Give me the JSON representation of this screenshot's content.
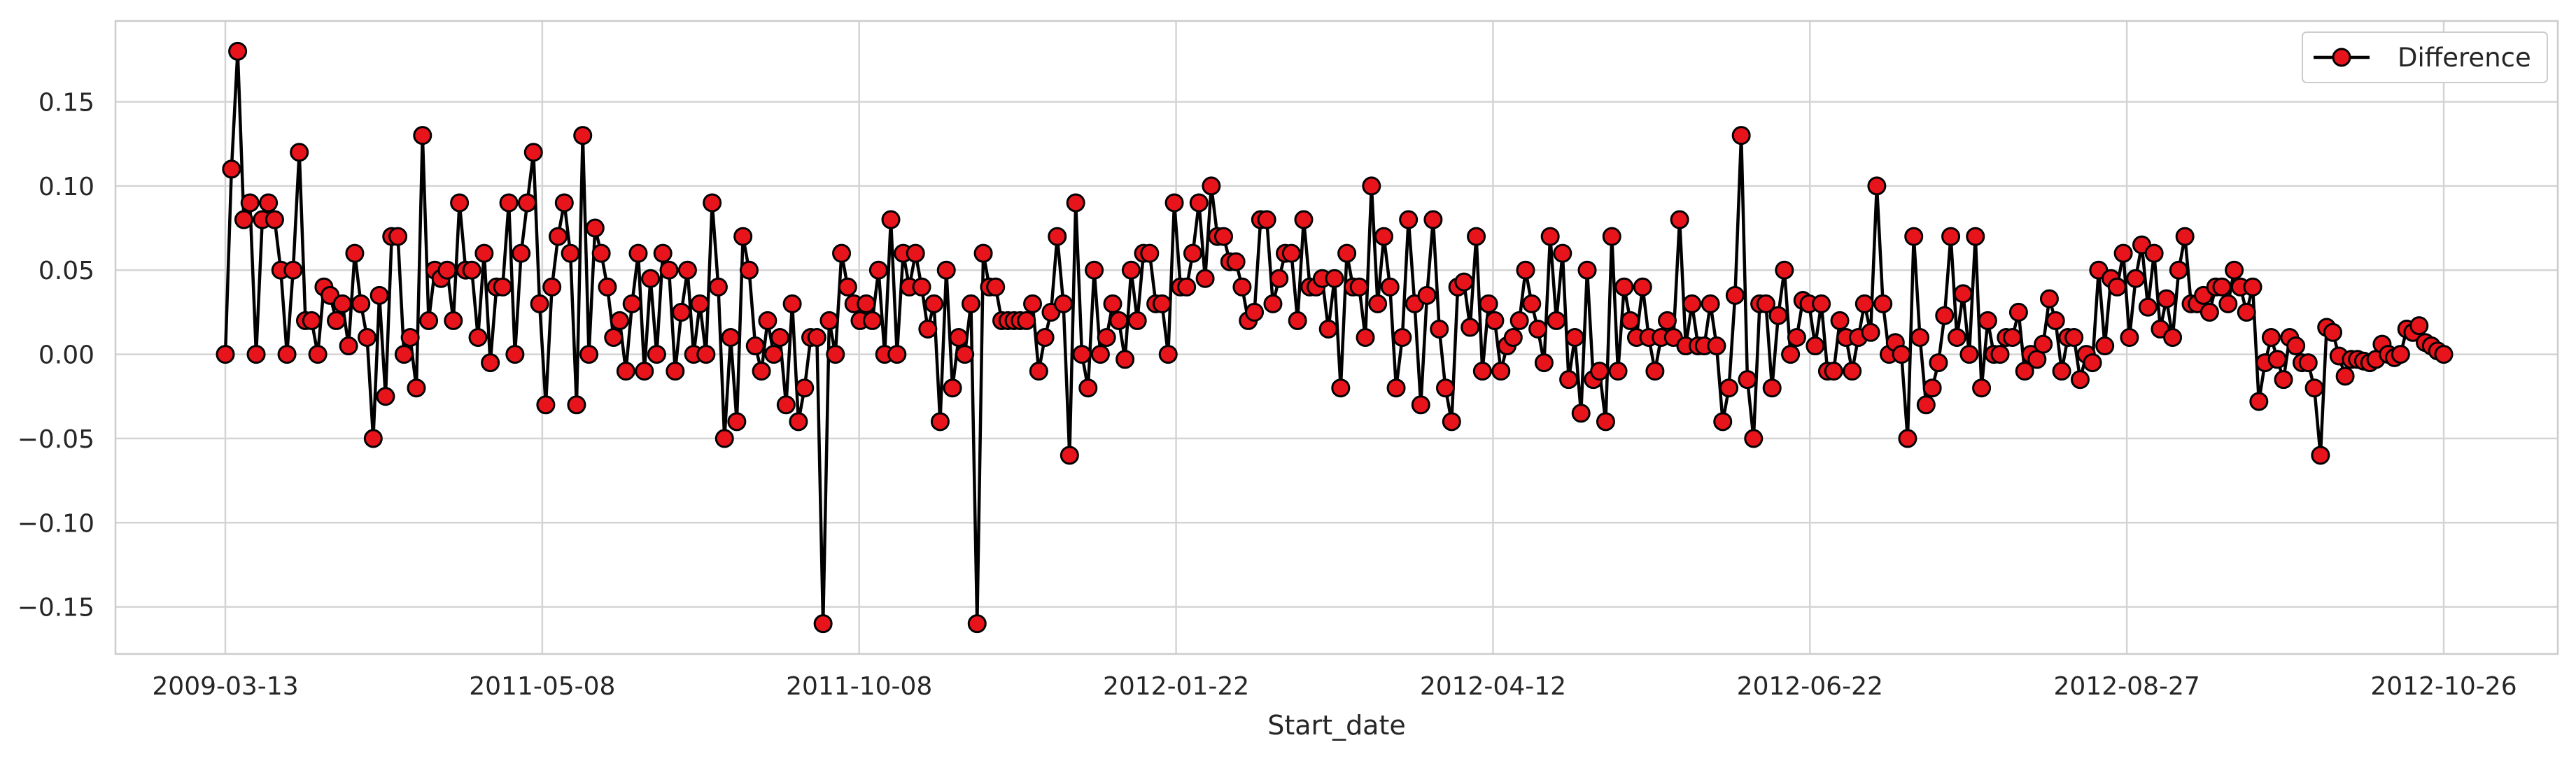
{
  "chart_data": {
    "type": "line",
    "title": "",
    "xlabel": "Start_date",
    "ylabel": "",
    "x_tick_labels": [
      "2009-03-13",
      "2011-05-08",
      "2011-10-08",
      "2012-01-22",
      "2012-04-12",
      "2012-06-22",
      "2012-08-27",
      "2012-10-26"
    ],
    "y_ticks": [
      -0.15,
      -0.1,
      -0.05,
      0.0,
      0.05,
      0.1,
      0.15
    ],
    "y_tick_labels": [
      "−0.15",
      "−0.10",
      "−0.05",
      "0.00",
      "0.05",
      "0.10",
      "0.15"
    ],
    "ylim": [
      -0.178,
      0.198
    ],
    "grid": true,
    "legend_position": "top-right",
    "series": [
      {
        "name": "Difference",
        "line_color": "#000000",
        "marker_face": "#e8141b",
        "marker_edge": "#000000",
        "values": [
          0.0,
          0.11,
          0.18,
          0.08,
          0.09,
          0.0,
          0.08,
          0.09,
          0.08,
          0.05,
          0.0,
          0.05,
          0.12,
          0.02,
          0.02,
          0.0,
          0.04,
          0.035,
          0.02,
          0.03,
          0.005,
          0.06,
          0.03,
          0.01,
          -0.05,
          0.035,
          -0.025,
          0.07,
          0.07,
          0.0,
          0.01,
          -0.02,
          0.13,
          0.02,
          0.05,
          0.045,
          0.05,
          0.02,
          0.09,
          0.05,
          0.05,
          0.01,
          0.06,
          -0.005,
          0.04,
          0.04,
          0.09,
          0.0,
          0.06,
          0.09,
          0.12,
          0.03,
          -0.03,
          0.04,
          0.07,
          0.09,
          0.06,
          -0.03,
          0.13,
          0.0,
          0.075,
          0.06,
          0.04,
          0.01,
          0.02,
          -0.01,
          0.03,
          0.06,
          -0.01,
          0.045,
          0.0,
          0.06,
          0.05,
          -0.01,
          0.025,
          0.05,
          0.0,
          0.03,
          0.0,
          0.09,
          0.04,
          -0.05,
          0.01,
          -0.04,
          0.07,
          0.05,
          0.005,
          -0.01,
          0.02,
          0.0,
          0.01,
          -0.03,
          0.03,
          -0.04,
          -0.02,
          0.01,
          0.01,
          -0.16,
          0.02,
          0.0,
          0.06,
          0.04,
          0.03,
          0.02,
          0.03,
          0.02,
          0.05,
          0.0,
          0.08,
          0.0,
          0.06,
          0.04,
          0.06,
          0.04,
          0.015,
          0.03,
          -0.04,
          0.05,
          -0.02,
          0.01,
          0.0,
          0.03,
          -0.16,
          0.06,
          0.04,
          0.04,
          0.02,
          0.02,
          0.02,
          0.02,
          0.02,
          0.03,
          -0.01,
          0.01,
          0.025,
          0.07,
          0.03,
          -0.06,
          0.09,
          0.0,
          -0.02,
          0.05,
          0.0,
          0.01,
          0.03,
          0.02,
          -0.003,
          0.05,
          0.02,
          0.06,
          0.06,
          0.03,
          0.03,
          0.0,
          0.09,
          0.04,
          0.04,
          0.06,
          0.09,
          0.045,
          0.1,
          0.07,
          0.07,
          0.055,
          0.055,
          0.04,
          0.02,
          0.025,
          0.08,
          0.08,
          0.03,
          0.045,
          0.06,
          0.06,
          0.02,
          0.08,
          0.04,
          0.04,
          0.045,
          0.015,
          0.045,
          -0.02,
          0.06,
          0.04,
          0.04,
          0.01,
          0.1,
          0.03,
          0.07,
          0.04,
          -0.02,
          0.01,
          0.08,
          0.03,
          -0.03,
          0.035,
          0.08,
          0.015,
          -0.02,
          -0.04,
          0.04,
          0.043,
          0.016,
          0.07,
          -0.01,
          0.03,
          0.02,
          -0.01,
          0.005,
          0.01,
          0.02,
          0.05,
          0.03,
          0.015,
          -0.005,
          0.07,
          0.02,
          0.06,
          -0.015,
          0.01,
          -0.035,
          0.05,
          -0.015,
          -0.01,
          -0.04,
          0.07,
          -0.01,
          0.04,
          0.02,
          0.01,
          0.04,
          0.01,
          -0.01,
          0.01,
          0.02,
          0.01,
          0.08,
          0.005,
          0.03,
          0.005,
          0.005,
          0.03,
          0.005,
          -0.04,
          -0.02,
          0.035,
          0.13,
          -0.015,
          -0.05,
          0.03,
          0.03,
          -0.02,
          0.023,
          0.05,
          0.0,
          0.01,
          0.032,
          0.03,
          0.005,
          0.03,
          -0.01,
          -0.01,
          0.02,
          0.01,
          -0.01,
          0.01,
          0.03,
          0.013,
          0.1,
          0.03,
          0.0,
          0.007,
          0.0,
          -0.05,
          0.07,
          0.01,
          -0.03,
          -0.02,
          -0.005,
          0.023,
          0.07,
          0.01,
          0.036,
          0.0,
          0.07,
          -0.02,
          0.02,
          0.0,
          0.0,
          0.01,
          0.01,
          0.025,
          -0.01,
          0.0,
          -0.003,
          0.006,
          0.033,
          0.02,
          -0.01,
          0.01,
          0.01,
          -0.015,
          0.0,
          -0.005,
          0.05,
          0.005,
          0.045,
          0.04,
          0.06,
          0.01,
          0.045,
          0.065,
          0.028,
          0.06,
          0.015,
          0.033,
          0.01,
          0.05,
          0.07,
          0.03,
          0.03,
          0.035,
          0.025,
          0.04,
          0.04,
          0.03,
          0.05,
          0.04,
          0.025,
          0.04,
          -0.028,
          -0.005,
          0.01,
          -0.003,
          -0.015,
          0.01,
          0.005,
          -0.005,
          -0.005,
          -0.02,
          -0.06,
          0.016,
          0.013,
          -0.001,
          -0.013,
          -0.003,
          -0.003,
          -0.004,
          -0.005,
          -0.003,
          0.006,
          0.0,
          -0.002,
          0.0,
          0.015,
          0.013,
          0.017,
          0.007,
          0.005,
          0.002,
          0.0
        ]
      }
    ]
  }
}
